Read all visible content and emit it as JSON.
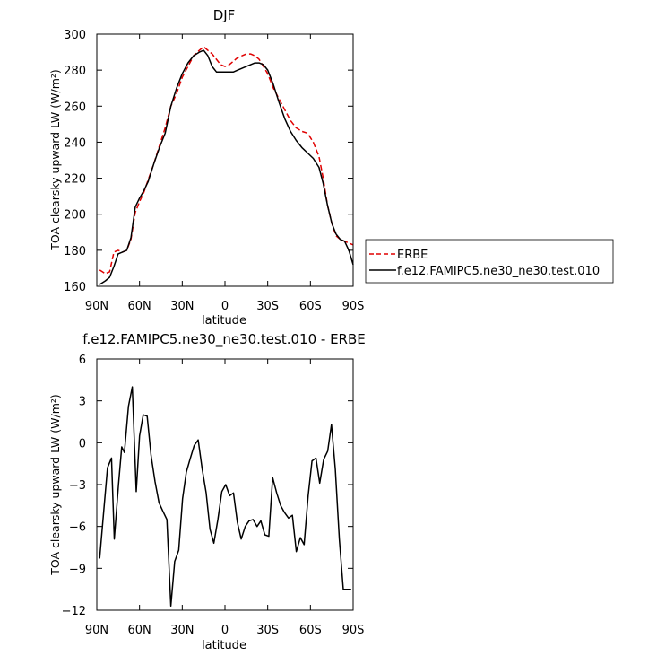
{
  "chart_data": [
    {
      "type": "line",
      "title": "DJF",
      "xlabel": "latitude",
      "ylabel": "TOA clearsky upward LW (W/m²)",
      "ylim": [
        160,
        300
      ],
      "xlim": [
        90,
        -90
      ],
      "xticks": [
        90,
        60,
        30,
        0,
        -30,
        -60,
        -90
      ],
      "xtick_labels": [
        "90N",
        "60N",
        "30N",
        "0",
        "30S",
        "60S",
        "90S"
      ],
      "yticks": [
        160,
        180,
        200,
        220,
        240,
        260,
        280,
        300
      ],
      "ytick_labels": [
        "160",
        "180",
        "200",
        "220",
        "240",
        "260",
        "280",
        "300"
      ],
      "legend": "right-outside",
      "series": [
        {
          "name": "ERBE",
          "color": "#e00000",
          "dash": "dashed",
          "x": [
            88,
            84,
            81,
            78,
            75,
            72,
            69,
            66,
            63,
            60,
            57,
            54,
            50,
            46,
            42,
            38,
            34,
            30,
            26,
            22,
            18,
            15,
            12,
            9,
            6,
            3,
            0,
            -3,
            -6,
            -9,
            -12,
            -15,
            -18,
            -21,
            -24,
            -27,
            -30,
            -34,
            -38,
            -42,
            -46,
            -50,
            -54,
            -58,
            -62,
            -66,
            -69,
            -72,
            -75,
            -78,
            -81,
            -84,
            -87,
            -90
          ],
          "y": [
            169,
            167,
            168,
            179,
            180,
            179,
            180,
            186,
            201,
            207,
            212,
            219,
            228,
            238,
            248,
            260,
            267,
            276,
            282,
            288,
            291,
            293,
            291,
            289,
            286,
            283,
            282,
            283,
            285,
            287,
            288,
            289,
            289,
            288,
            286,
            282,
            278,
            270,
            264,
            258,
            252,
            248,
            246,
            245,
            240,
            232,
            220,
            205,
            195,
            188,
            186,
            185,
            184,
            183
          ]
        },
        {
          "name": "f.e12.FAMIPC5.ne30_ne30.test.010",
          "color": "#000000",
          "dash": "solid",
          "x": [
            88,
            84,
            81,
            78,
            75,
            72,
            69,
            66,
            63,
            60,
            57,
            54,
            50,
            46,
            42,
            38,
            34,
            30,
            26,
            22,
            18,
            15,
            12,
            9,
            6,
            3,
            0,
            -3,
            -6,
            -9,
            -12,
            -15,
            -18,
            -21,
            -24,
            -27,
            -30,
            -34,
            -38,
            -42,
            -46,
            -50,
            -54,
            -58,
            -62,
            -66,
            -69,
            -72,
            -75,
            -78,
            -81,
            -84,
            -87,
            -90
          ],
          "y": [
            161,
            163,
            165,
            171,
            178,
            179,
            180,
            187,
            204,
            209,
            213,
            218,
            228,
            237,
            245,
            260,
            270,
            278,
            284,
            288,
            290,
            291,
            288,
            282,
            279,
            279,
            279,
            279,
            279,
            280,
            281,
            282,
            283,
            284,
            284,
            283,
            280,
            272,
            262,
            253,
            246,
            241,
            237,
            234,
            231,
            226,
            217,
            205,
            195,
            189,
            186,
            185,
            180,
            172
          ]
        }
      ]
    },
    {
      "type": "line",
      "title": "f.e12.FAMIPC5.ne30_ne30.test.010 - ERBE",
      "xlabel": "latitude",
      "ylabel": "TOA clearsky upward LW (W/m²)",
      "ylim": [
        -12,
        6
      ],
      "xlim": [
        90,
        -90
      ],
      "xticks": [
        90,
        60,
        30,
        0,
        -30,
        -60,
        -90
      ],
      "xtick_labels": [
        "90N",
        "60N",
        "30N",
        "0",
        "30S",
        "60S",
        "90S"
      ],
      "yticks": [
        -12,
        -9,
        -6,
        -3,
        0,
        3,
        6
      ],
      "ytick_labels": [
        "-12",
        "-9",
        "-6",
        "-3",
        "0",
        "3",
        "6"
      ],
      "series": [
        {
          "color": "#000000",
          "dash": "solid",
          "x": [
            88,
            85.2,
            82.5,
            79.7,
            77.7,
            74.8,
            72.5,
            70.6,
            67.8,
            65.1,
            62.3,
            60,
            57.4,
            54.6,
            51.9,
            49.1,
            46.3,
            43.6,
            40.8,
            38,
            35.3,
            32.5,
            29.8,
            27.1,
            24.3,
            21.6,
            18.8,
            16,
            13.2,
            10.5,
            7.8,
            5,
            2.2,
            -0.5,
            -3.3,
            -6,
            -8.7,
            -11.4,
            -14.2,
            -16.9,
            -19.7,
            -22.5,
            -25.2,
            -28,
            -30.8,
            -33.5,
            -36.3,
            -39.1,
            -41.8,
            -44.6,
            -47.3,
            -50.1,
            -52.9,
            -55.6,
            -58.4,
            -61.1,
            -63.9,
            -66.5,
            -69.3,
            -72.1,
            -74.8,
            -77.5,
            -80.3,
            -83.1,
            -85.9,
            -88.6
          ],
          "y": [
            -8.3,
            -5,
            -1.8,
            -1.1,
            -6.9,
            -3,
            -0.3,
            -0.7,
            2.6,
            4,
            -3.5,
            0.5,
            2,
            1.9,
            -0.9,
            -2.8,
            -4.3,
            -4.9,
            -5.5,
            -11.7,
            -8.5,
            -7.7,
            -4,
            -2.1,
            -1.1,
            -0.2,
            0.2,
            -1.9,
            -3.6,
            -6.2,
            -7.2,
            -5.5,
            -3.5,
            -3,
            -3.8,
            -3.6,
            -5.7,
            -6.9,
            -6,
            -5.6,
            -5.5,
            -6,
            -5.6,
            -6.6,
            -6.7,
            -2.5,
            -3.6,
            -4.5,
            -5,
            -5.4,
            -5.2,
            -7.8,
            -6.8,
            -7.3,
            -3.8,
            -1.3,
            -1.1,
            -2.9,
            -1.2,
            -0.6,
            1.3,
            -1.9,
            -6.9,
            -10.5,
            -10.5,
            -10.5
          ]
        }
      ]
    }
  ]
}
